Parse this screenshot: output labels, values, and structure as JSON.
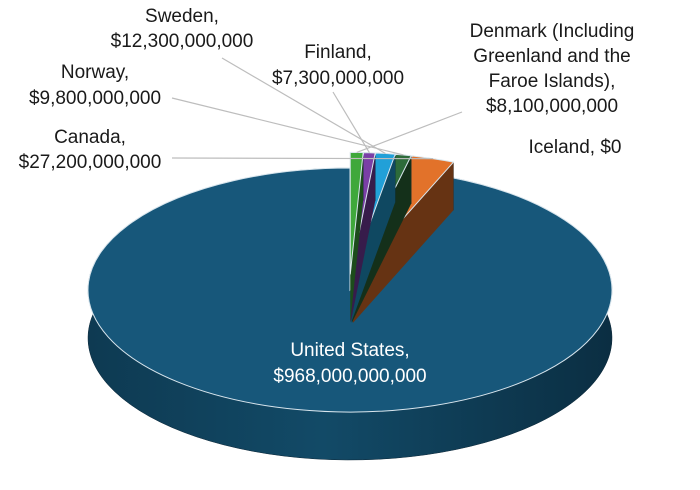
{
  "chart_data": {
    "type": "pie",
    "title": "",
    "style": "3d-exploded",
    "slices": [
      {
        "name": "United States",
        "value": 968000000000,
        "value_label": "$968,000,000,000",
        "color": "#17577a"
      },
      {
        "name": "Canada",
        "value": 27200000000,
        "value_label": "$27,200,000,000",
        "color": "#e2722a"
      },
      {
        "name": "Norway",
        "value": 9800000000,
        "value_label": "$9,800,000,000",
        "color": "#2d6b3a"
      },
      {
        "name": "Sweden",
        "value": 12300000000,
        "value_label": "$12,300,000,000",
        "color": "#21a0d8"
      },
      {
        "name": "Finland",
        "value": 7300000000,
        "value_label": "$7,300,000,000",
        "color": "#7a3fa6"
      },
      {
        "name": "Denmark (Including Greenland and the Faroe Islands)",
        "value": 8100000000,
        "value_label": "$8,100,000,000",
        "color": "#3fa83b"
      },
      {
        "name": "Iceland",
        "value": 0,
        "value_label": "$0",
        "color": "#b0b0b0"
      }
    ],
    "labels": {
      "united_states": [
        "United States,",
        "$968,000,000,000"
      ],
      "canada": [
        "Canada,",
        "$27,200,000,000"
      ],
      "norway": [
        "Norway,",
        "$9,800,000,000"
      ],
      "sweden": [
        "Sweden,",
        "$12,300,000,000"
      ],
      "finland": [
        "Finland,",
        "$7,300,000,000"
      ],
      "denmark": [
        "Denmark (Including",
        "Greenland and the",
        "Faroe Islands),",
        "$8,100,000,000"
      ],
      "iceland": [
        "Iceland, $0"
      ]
    }
  }
}
